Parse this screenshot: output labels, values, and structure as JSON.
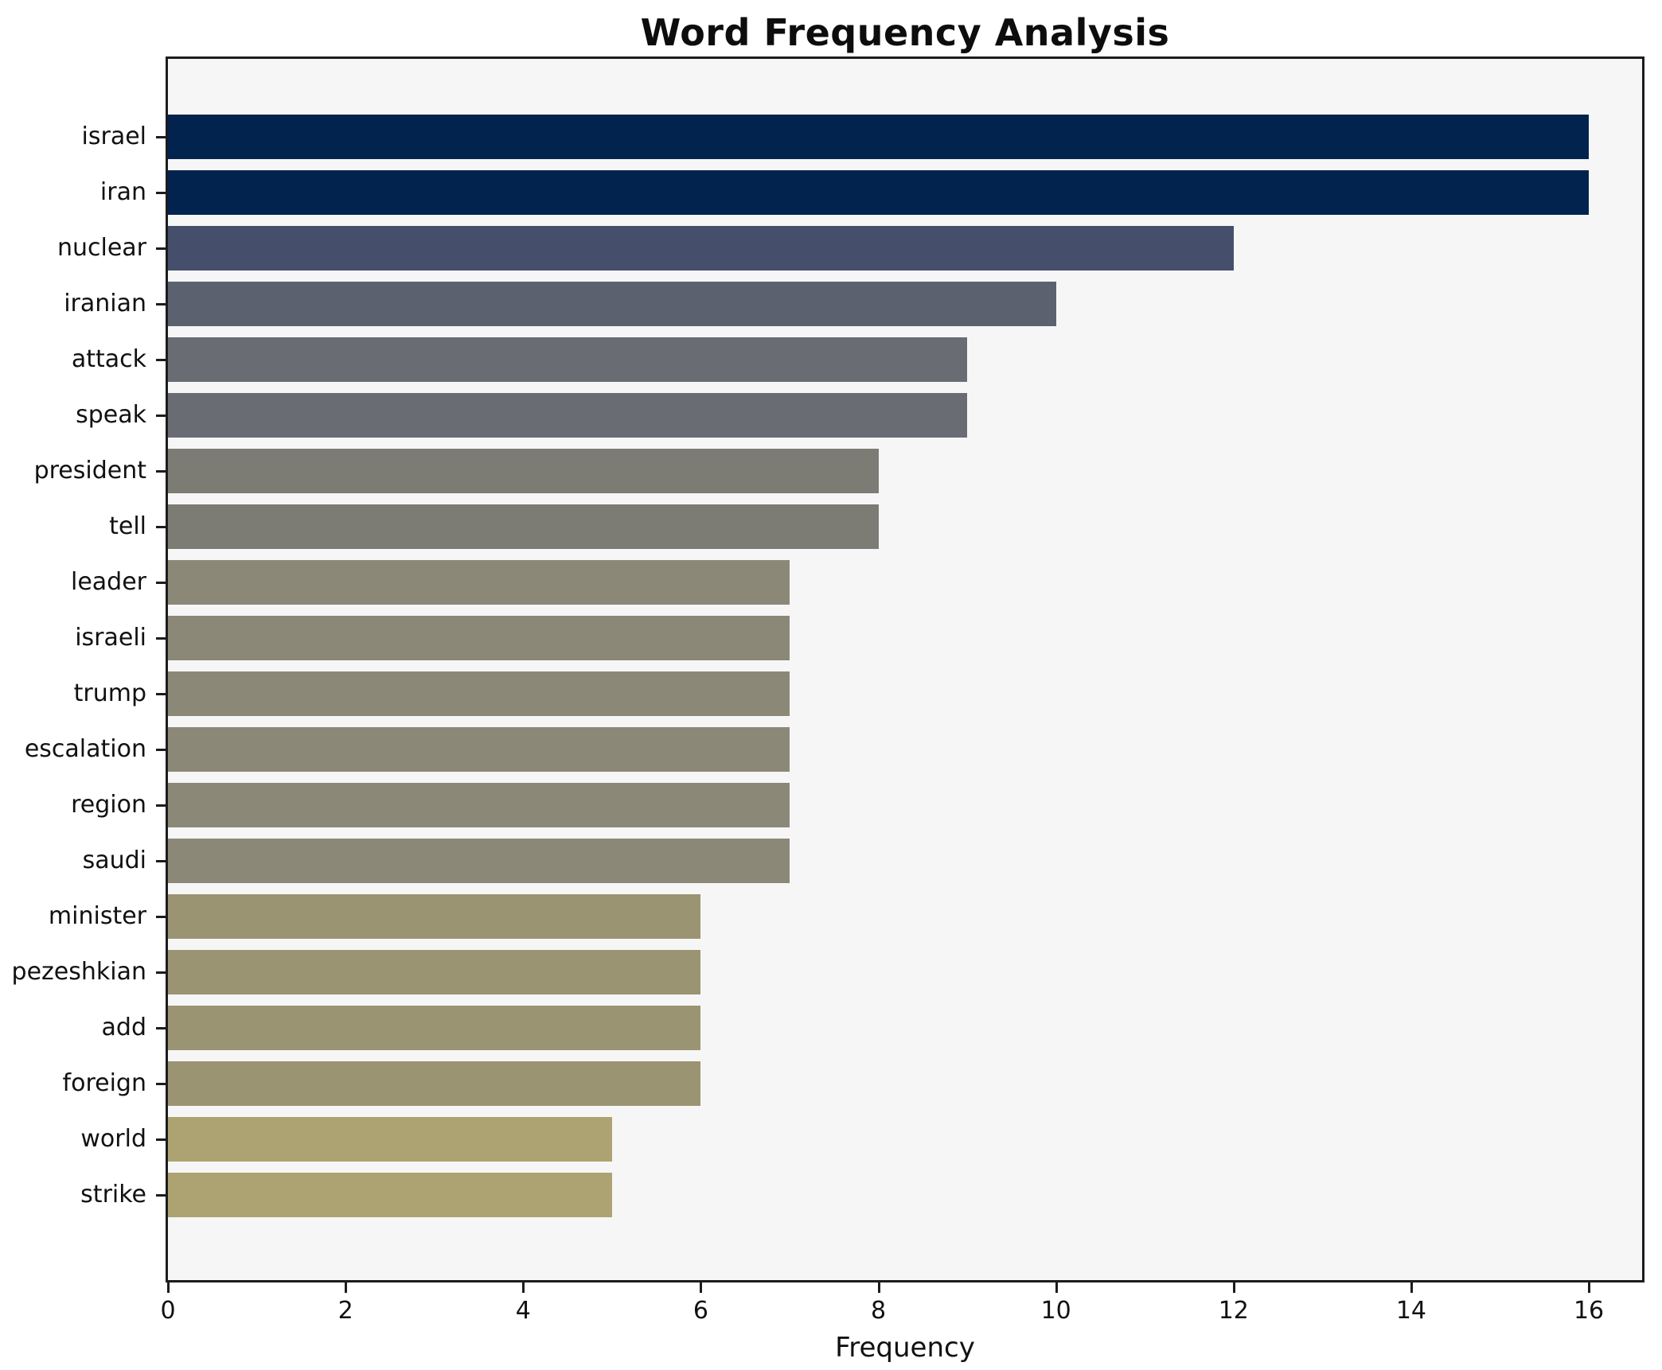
{
  "chart_data": {
    "type": "bar",
    "orientation": "horizontal",
    "title": "Word Frequency Analysis",
    "xlabel": "Frequency",
    "ylabel": "",
    "categories": [
      "israel",
      "iran",
      "nuclear",
      "iranian",
      "attack",
      "speak",
      "president",
      "tell",
      "leader",
      "israeli",
      "trump",
      "escalation",
      "region",
      "saudi",
      "minister",
      "pezeshkian",
      "add",
      "foreign",
      "world",
      "strike"
    ],
    "values": [
      16,
      16,
      12,
      10,
      9,
      9,
      8,
      8,
      7,
      7,
      7,
      7,
      7,
      7,
      6,
      6,
      6,
      6,
      5,
      5
    ],
    "bar_colors": [
      "#02234e",
      "#02234e",
      "#454e6b",
      "#5c6170",
      "#6a6c74",
      "#6a6c74",
      "#7c7b74",
      "#7c7b74",
      "#8b8878",
      "#8b8878",
      "#8b8878",
      "#8b8878",
      "#8b8878",
      "#8b8878",
      "#9b9473",
      "#9b9473",
      "#9b9473",
      "#9b9473",
      "#ada372",
      "#ada372"
    ],
    "x_ticks": [
      0,
      2,
      4,
      6,
      8,
      10,
      12,
      14,
      16
    ],
    "x_tick_labels": [
      "0",
      "2",
      "4",
      "6",
      "8",
      "10",
      "12",
      "14",
      "16"
    ],
    "xlim": [
      0,
      16.6
    ],
    "grid": false,
    "legend": "none",
    "plot_background": "#f6f6f7",
    "figure_background": "#ffffff",
    "spine_color": "#1c1c1c",
    "text_color": "#111111"
  }
}
